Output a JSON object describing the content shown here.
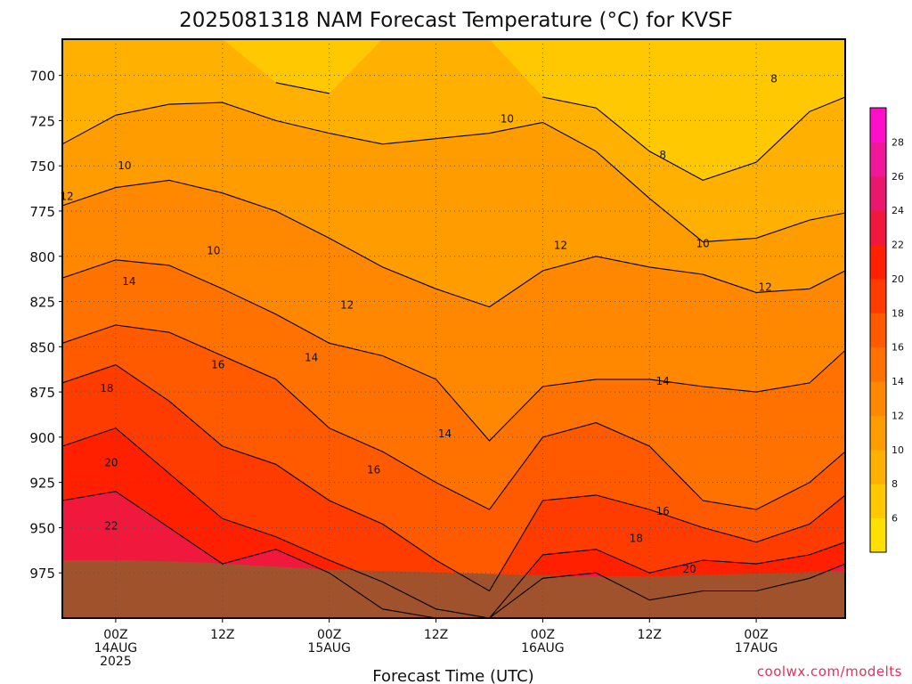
{
  "title": "2025081318 NAM Forecast Temperature (°C) for KVSF",
  "credit": "coolwx.com/modelts",
  "chart_data": {
    "type": "heatmap",
    "title": "2025081318 NAM Forecast Temperature (°C) for KVSF",
    "xlabel": "Forecast Time (UTC)",
    "ylabel": "",
    "y_scale": "pressure (hPa), inverted",
    "ylim": [
      1000,
      680
    ],
    "xlim_hours": [
      -6,
      82
    ],
    "y_ticks": [
      700,
      725,
      750,
      775,
      800,
      825,
      850,
      875,
      900,
      925,
      950,
      975
    ],
    "x_ticks": [
      {
        "hour": 0,
        "lines": [
          "00Z",
          "14AUG",
          "2025"
        ]
      },
      {
        "hour": 12,
        "lines": [
          "12Z"
        ]
      },
      {
        "hour": 24,
        "lines": [
          "00Z",
          "15AUG"
        ]
      },
      {
        "hour": 36,
        "lines": [
          "12Z"
        ]
      },
      {
        "hour": 48,
        "lines": [
          "00Z",
          "16AUG"
        ]
      },
      {
        "hour": 60,
        "lines": [
          "12Z"
        ]
      },
      {
        "hour": 72,
        "lines": [
          "00Z",
          "17AUG"
        ]
      }
    ],
    "grid": true,
    "colorbar": {
      "position": "right",
      "levels": [
        4,
        6,
        8,
        10,
        12,
        14,
        16,
        18,
        20,
        22,
        24,
        26,
        28,
        30
      ],
      "labels": [
        6,
        8,
        10,
        12,
        14,
        16,
        18,
        20,
        22,
        24,
        26,
        28
      ],
      "colors": [
        "#ffe000",
        "#ffc800",
        "#ffb000",
        "#ff9c00",
        "#ff8800",
        "#ff7200",
        "#ff5a00",
        "#ff3c00",
        "#ff2000",
        "#f0183c",
        "#e8186c",
        "#f01898",
        "#ff10c8"
      ]
    },
    "ground": {
      "color": "#a0522d",
      "surface_pressure_hPa": [
        968,
        968,
        969,
        971,
        973,
        974,
        975,
        976,
        977,
        977,
        976,
        975,
        974
      ]
    },
    "hours": [
      -6,
      0,
      6,
      12,
      18,
      24,
      30,
      36,
      42,
      48,
      54,
      60,
      66,
      72,
      78,
      82
    ],
    "isotherms": [
      {
        "level": 8,
        "pressure": [
          null,
          null,
          null,
          null,
          704,
          710,
          null,
          null,
          null,
          712,
          718,
          742,
          758,
          748,
          720,
          712
        ]
      },
      {
        "level": 10,
        "pressure": [
          738,
          722,
          716,
          715,
          725,
          732,
          738,
          735,
          732,
          726,
          742,
          768,
          792,
          790,
          780,
          776
        ]
      },
      {
        "level": 12,
        "pressure": [
          772,
          762,
          758,
          765,
          775,
          790,
          806,
          818,
          828,
          808,
          800,
          806,
          810,
          820,
          818,
          808
        ]
      },
      {
        "level": 14,
        "pressure": [
          812,
          802,
          805,
          818,
          832,
          848,
          855,
          868,
          902,
          872,
          868,
          868,
          872,
          875,
          870,
          852
        ]
      },
      {
        "level": 16,
        "pressure": [
          848,
          838,
          842,
          855,
          868,
          895,
          908,
          925,
          940,
          900,
          892,
          905,
          935,
          940,
          925,
          908
        ]
      },
      {
        "level": 18,
        "pressure": [
          870,
          860,
          880,
          905,
          915,
          935,
          948,
          968,
          985,
          935,
          932,
          940,
          950,
          958,
          948,
          932
        ]
      },
      {
        "level": 20,
        "pressure": [
          905,
          895,
          920,
          945,
          955,
          968,
          980,
          995,
          1000,
          965,
          962,
          975,
          968,
          970,
          965,
          958
        ]
      },
      {
        "level": 22,
        "pressure": [
          935,
          930,
          950,
          970,
          962,
          975,
          995,
          1000,
          1000,
          978,
          975,
          990,
          985,
          985,
          978,
          970
        ]
      }
    ],
    "contour_labels": [
      {
        "level": 8,
        "at": [
          [
            61.5,
            744
          ],
          [
            74,
            702
          ]
        ]
      },
      {
        "level": 10,
        "at": [
          [
            1,
            750
          ],
          [
            11,
            797
          ],
          [
            44,
            724
          ],
          [
            66,
            793
          ]
        ]
      },
      {
        "level": 12,
        "at": [
          [
            -5.5,
            767
          ],
          [
            26,
            827
          ],
          [
            50,
            794
          ],
          [
            73,
            817
          ]
        ]
      },
      {
        "level": 14,
        "at": [
          [
            1.5,
            814
          ],
          [
            22,
            856
          ],
          [
            37,
            898
          ],
          [
            61.5,
            869
          ]
        ]
      },
      {
        "level": 16,
        "at": [
          [
            11.5,
            860
          ],
          [
            29,
            918
          ],
          [
            61.5,
            941
          ]
        ]
      },
      {
        "level": 18,
        "at": [
          [
            -1,
            873
          ],
          [
            58.5,
            956
          ]
        ]
      },
      {
        "level": 20,
        "at": [
          [
            -0.5,
            914
          ],
          [
            64.5,
            973
          ]
        ]
      },
      {
        "level": 22,
        "at": [
          [
            -0.5,
            949
          ]
        ]
      }
    ]
  }
}
